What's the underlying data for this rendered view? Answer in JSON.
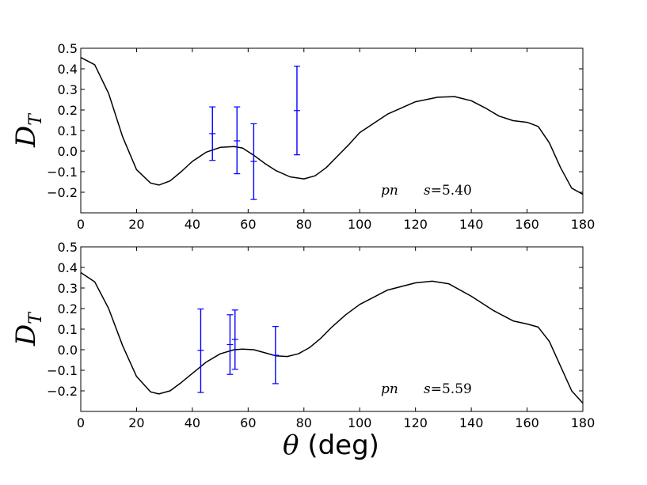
{
  "chart_data": [
    {
      "type": "line",
      "xlabel_symbol": "θ",
      "xlabel_unit": " (deg)",
      "ylabel_main": "D",
      "ylabel_sub": "T",
      "xlim": [
        0,
        180
      ],
      "ylim": [
        -0.3,
        0.5
      ],
      "xticks": [
        0,
        20,
        40,
        60,
        80,
        100,
        120,
        140,
        160,
        180
      ],
      "xtick_labels": [
        "0",
        "20",
        "40",
        "60",
        "80",
        "100",
        "120",
        "140",
        "160",
        "180"
      ],
      "yticks": [
        -0.2,
        -0.1,
        0.0,
        0.1,
        0.2,
        0.3,
        0.4,
        0.5
      ],
      "ytick_labels": [
        "−0.2",
        "−0.1",
        "0.0",
        "0.1",
        "0.2",
        "0.3",
        "0.4",
        "0.5"
      ],
      "annotation_label": "pn",
      "annotation_s": "s",
      "annotation_value": "=5.40",
      "curve": {
        "x": [
          0,
          5,
          10,
          15,
          20,
          25,
          28,
          32,
          36,
          40,
          45,
          50,
          55,
          58,
          62,
          66,
          70,
          75,
          80,
          84,
          88,
          92,
          96,
          100,
          110,
          120,
          128,
          134,
          140,
          145,
          150,
          155,
          160,
          164,
          168,
          172,
          176,
          180
        ],
        "y": [
          0.455,
          0.42,
          0.28,
          0.07,
          -0.09,
          -0.155,
          -0.165,
          -0.145,
          -0.1,
          -0.05,
          -0.005,
          0.018,
          0.022,
          0.015,
          -0.02,
          -0.06,
          -0.095,
          -0.125,
          -0.135,
          -0.12,
          -0.08,
          -0.025,
          0.03,
          0.09,
          0.18,
          0.24,
          0.262,
          0.265,
          0.245,
          0.21,
          0.17,
          0.148,
          0.14,
          0.12,
          0.04,
          -0.08,
          -0.18,
          -0.21
        ]
      },
      "errorbars": [
        {
          "x": 47.2,
          "y": 0.085,
          "low": -0.045,
          "high": 0.215
        },
        {
          "x": 56.0,
          "y": 0.05,
          "low": -0.11,
          "high": 0.215
        },
        {
          "x": 62.0,
          "y": -0.05,
          "low": -0.235,
          "high": 0.133
        },
        {
          "x": 77.5,
          "y": 0.197,
          "low": -0.018,
          "high": 0.413
        }
      ]
    },
    {
      "type": "line",
      "xlabel_symbol": "θ",
      "xlabel_unit": " (deg)",
      "ylabel_main": "D",
      "ylabel_sub": "T",
      "xlim": [
        0,
        180
      ],
      "ylim": [
        -0.3,
        0.5
      ],
      "xticks": [
        0,
        20,
        40,
        60,
        80,
        100,
        120,
        140,
        160,
        180
      ],
      "xtick_labels": [
        "0",
        "20",
        "40",
        "60",
        "80",
        "100",
        "120",
        "140",
        "160",
        "180"
      ],
      "yticks": [
        -0.2,
        -0.1,
        0.0,
        0.1,
        0.2,
        0.3,
        0.4,
        0.5
      ],
      "ytick_labels": [
        "−0.2",
        "−0.1",
        "0.0",
        "0.1",
        "0.2",
        "0.3",
        "0.4",
        "0.5"
      ],
      "annotation_label": "pn",
      "annotation_s": "s",
      "annotation_value": "=5.59",
      "curve": {
        "x": [
          0,
          5,
          10,
          15,
          20,
          25,
          28,
          32,
          36,
          40,
          45,
          50,
          55,
          58,
          62,
          66,
          70,
          74,
          78,
          82,
          86,
          90,
          95,
          100,
          110,
          120,
          126,
          132,
          140,
          148,
          155,
          160,
          164,
          168,
          172,
          176,
          180
        ],
        "y": [
          0.375,
          0.33,
          0.2,
          0.02,
          -0.13,
          -0.205,
          -0.215,
          -0.2,
          -0.16,
          -0.115,
          -0.06,
          -0.02,
          0.0,
          0.003,
          0.0,
          -0.015,
          -0.03,
          -0.033,
          -0.02,
          0.01,
          0.055,
          0.11,
          0.17,
          0.22,
          0.29,
          0.325,
          0.333,
          0.32,
          0.26,
          0.19,
          0.14,
          0.125,
          0.11,
          0.04,
          -0.08,
          -0.2,
          -0.26
        ]
      },
      "errorbars": [
        {
          "x": 43.0,
          "y": -0.003,
          "low": -0.208,
          "high": 0.198
        },
        {
          "x": 53.5,
          "y": 0.025,
          "low": -0.12,
          "high": 0.17
        },
        {
          "x": 55.3,
          "y": 0.05,
          "low": -0.095,
          "high": 0.193
        },
        {
          "x": 69.8,
          "y": -0.027,
          "low": -0.165,
          "high": 0.113
        }
      ]
    }
  ]
}
